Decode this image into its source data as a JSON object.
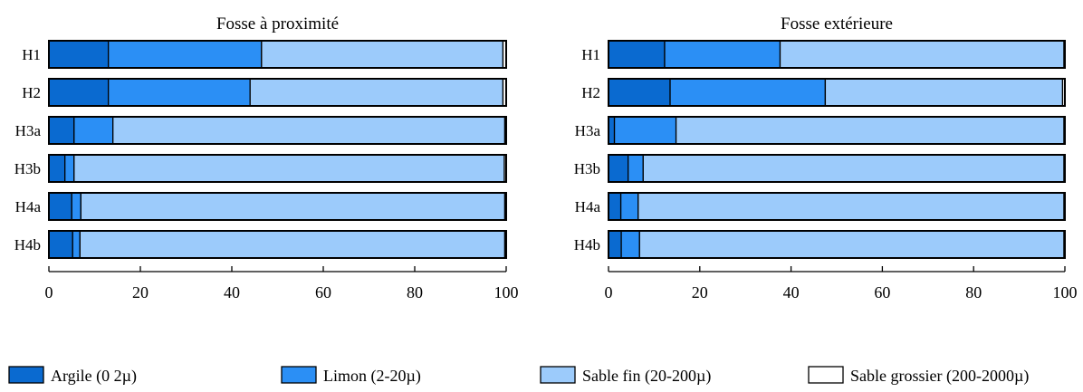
{
  "chart_data": [
    {
      "type": "bar",
      "orientation": "horizontal",
      "stacked": true,
      "title": "Fosse à proximité",
      "categories": [
        "H1",
        "H2",
        "H3a",
        "H3b",
        "H4a",
        "H4b"
      ],
      "xlim": [
        0,
        100
      ],
      "xticks": [
        "0",
        "20",
        "40",
        "60",
        "80",
        "100"
      ],
      "series": [
        {
          "name": "Argile (0 2µ)",
          "values": [
            13,
            13,
            5.5,
            3.5,
            5,
            5.2
          ]
        },
        {
          "name": "Limon (2-20µ)",
          "values": [
            33.5,
            31,
            8.5,
            2,
            2,
            1.6
          ]
        },
        {
          "name": "Sable fin (20-200µ)",
          "values": [
            52.8,
            55.3,
            85.7,
            94.1,
            92.7,
            92.9
          ]
        },
        {
          "name": "Sable grossier (200-2000µ)",
          "values": [
            0.7,
            0.7,
            0.3,
            0.4,
            0.3,
            0.3
          ]
        }
      ]
    },
    {
      "type": "bar",
      "orientation": "horizontal",
      "stacked": true,
      "title": "Fosse extérieure",
      "categories": [
        "H1",
        "H2",
        "H3a",
        "H3b",
        "H4a",
        "H4b"
      ],
      "xlim": [
        0,
        100
      ],
      "xticks": [
        "0",
        "20",
        "40",
        "60",
        "80",
        "100"
      ],
      "series": [
        {
          "name": "Argile (0 2µ)",
          "values": [
            12.3,
            13.5,
            1.3,
            4.3,
            2.7,
            2.8
          ]
        },
        {
          "name": "Limon (2-20µ)",
          "values": [
            25.3,
            34,
            13.5,
            3.3,
            3.8,
            4
          ]
        },
        {
          "name": "Sable fin (20-200µ)",
          "values": [
            62.2,
            52,
            85,
            92.2,
            93.3,
            93
          ]
        },
        {
          "name": "Sable grossier (200-2000µ)",
          "values": [
            0.2,
            0.5,
            0.2,
            0.2,
            0.2,
            0.2
          ]
        }
      ]
    }
  ],
  "legend": {
    "items": [
      {
        "label": "Argile (0 2µ)",
        "color": "#0a6ad0"
      },
      {
        "label": "Limon (2-20µ)",
        "color": "#2b8ff5"
      },
      {
        "label": "Sable fin (20-200µ)",
        "color": "#9ccbfb"
      },
      {
        "label": "Sable grossier (200-2000µ)",
        "color": "#ffffff"
      }
    ]
  }
}
